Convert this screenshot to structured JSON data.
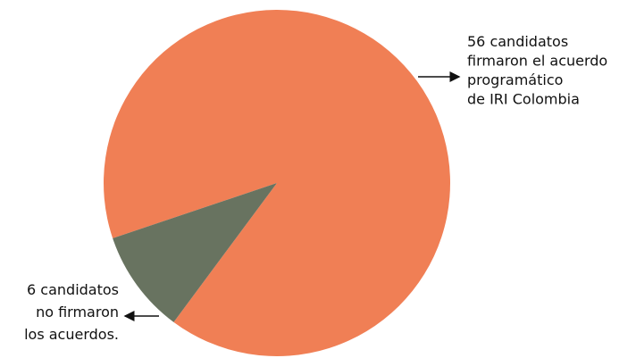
{
  "chart_data": {
    "type": "pie",
    "categories": [
      "firmaron",
      "no firmaron"
    ],
    "values": [
      56,
      6
    ],
    "colors": [
      "#f07f55",
      "#687360"
    ],
    "labels": [
      [
        "56 candidatos",
        "firmaron el acuerdo",
        "programático",
        "de IRI Colombia"
      ],
      [
        "6 candidatos",
        "no firmaron",
        "los acuerdos."
      ]
    ]
  }
}
